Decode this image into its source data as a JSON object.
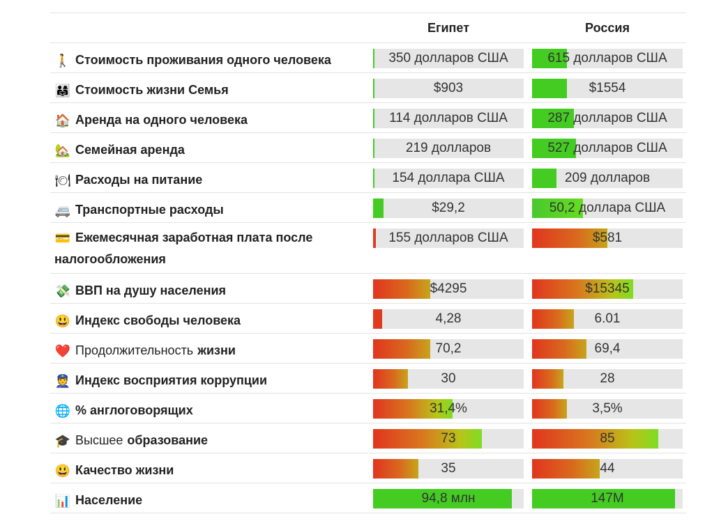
{
  "columns": {
    "egypt": "Египет",
    "russia": "Россия"
  },
  "rows": [
    {
      "icon": "🚶",
      "icon_name": "person-walking-icon",
      "label": "Стоимость проживания одного человека",
      "egypt": {
        "value": "350 долларов США",
        "fill": 0.01,
        "style": "green"
      },
      "russia": {
        "value": "615 долларов США",
        "fill": 0.23,
        "style": "green"
      }
    },
    {
      "icon": "👨‍👩‍👧",
      "icon_name": "family-icon",
      "label": "Стоимость жизни Семья",
      "egypt": {
        "value": "$903",
        "fill": 0.01,
        "style": "green"
      },
      "russia": {
        "value": "$1554",
        "fill": 0.23,
        "style": "green"
      }
    },
    {
      "icon": "🏠",
      "icon_name": "house-icon",
      "label": "Аренда на одного человека",
      "egypt": {
        "value": "114 долларов США",
        "fill": 0.01,
        "style": "green"
      },
      "russia": {
        "value": "287 долларов США",
        "fill": 0.28,
        "style": "green"
      }
    },
    {
      "icon": "🏡",
      "icon_name": "family-house-icon",
      "label": "Семейная аренда",
      "egypt": {
        "value": "219 долларов",
        "fill": 0.01,
        "style": "green"
      },
      "russia": {
        "value": "527 долларов США",
        "fill": 0.29,
        "style": "green"
      }
    },
    {
      "icon": "🍽",
      "icon_name": "plate-cutlery-icon",
      "label": "Расходы на питание",
      "egypt": {
        "value": "154 доллара США",
        "fill": 0.01,
        "style": "green"
      },
      "russia": {
        "value": "209 долларов",
        "fill": 0.16,
        "style": "green"
      }
    },
    {
      "icon": "🚐",
      "icon_name": "van-icon",
      "label": "Транспортные расходы",
      "egypt": {
        "value": "$29,2",
        "fill": 0.07,
        "style": "green"
      },
      "russia": {
        "value": "50,2 доллара США",
        "fill": 0.34,
        "style": "green-grad"
      }
    },
    {
      "icon": "💳",
      "icon_name": "credit-card-icon",
      "label": "Ежемесячная заработная плата после налогообложения",
      "tall": true,
      "egypt": {
        "value": "155 долларов США",
        "fill": 0.02,
        "style": "red"
      },
      "russia": {
        "value": "$581",
        "fill": 0.5,
        "style": "red-mid"
      }
    },
    {
      "icon": "💸",
      "icon_name": "money-icon",
      "label": "ВВП на душу населения",
      "egypt": {
        "value": "$4295",
        "fill": 0.38,
        "style": "red-mid"
      },
      "russia": {
        "value": "$15345",
        "fill": 0.67,
        "style": "red-green"
      }
    },
    {
      "icon": "😃",
      "icon_name": "smiley-icon",
      "label": "Индекс свободы человека",
      "egypt": {
        "value": "4,28",
        "fill": 0.06,
        "style": "red"
      },
      "russia": {
        "value": "6.01",
        "fill": 0.28,
        "style": "red-mid"
      }
    },
    {
      "icon": "❤️",
      "icon_name": "heart-icon",
      "label_light": "Продолжительность",
      "label": "жизни",
      "egypt": {
        "value": "70,2",
        "fill": 0.38,
        "style": "red-mid"
      },
      "russia": {
        "value": "69,4",
        "fill": 0.36,
        "style": "red-mid"
      }
    },
    {
      "icon": "👮",
      "icon_name": "police-officer-icon",
      "label": "Индекс восприятия коррупции",
      "egypt": {
        "value": "30",
        "fill": 0.23,
        "style": "red-mid"
      },
      "russia": {
        "value": "28",
        "fill": 0.21,
        "style": "red-mid"
      }
    },
    {
      "icon": "🌐",
      "icon_name": "globe-icon",
      "label": "% англоговорящих",
      "egypt": {
        "value": "31,4%",
        "fill": 0.53,
        "style": "red-green"
      },
      "russia": {
        "value": "3,5%",
        "fill": 0.23,
        "style": "red-mid"
      }
    },
    {
      "icon": "🎓",
      "icon_name": "graduation-cap-icon",
      "label_light": "Высшее",
      "label": "образование",
      "egypt": {
        "value": "73",
        "fill": 0.72,
        "style": "red-green"
      },
      "russia": {
        "value": "85",
        "fill": 0.84,
        "style": "red-green"
      }
    },
    {
      "icon": "😃",
      "icon_name": "smiley-icon",
      "label": "Качество жизни",
      "egypt": {
        "value": "35",
        "fill": 0.3,
        "style": "red-mid"
      },
      "russia": {
        "value": "44",
        "fill": 0.45,
        "style": "red-mid"
      }
    },
    {
      "icon": "📊",
      "icon_name": "chart-icon",
      "label": "Население",
      "egypt": {
        "value": "94,8 млн",
        "fill": 0.92,
        "style": "green"
      },
      "russia": {
        "value": "147M",
        "fill": 0.95,
        "style": "green"
      }
    }
  ]
}
